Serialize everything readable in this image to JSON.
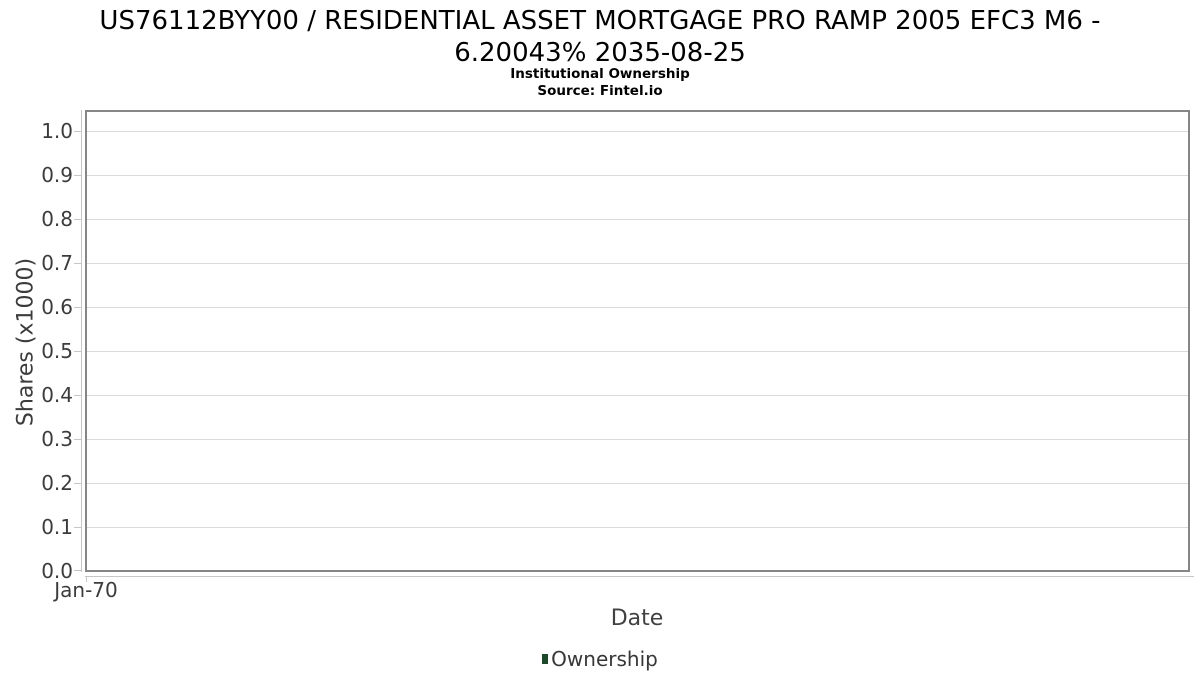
{
  "page": {
    "title_line1": "US76112BYY00 / RESIDENTIAL ASSET MORTGAGE PRO RAMP 2005 EFC3 M6 -",
    "title_line2": "6.20043% 2035-08-25",
    "subtitle": "Institutional Ownership",
    "source": "Source: Fintel.io"
  },
  "chart_data": {
    "type": "line",
    "title": "US76112BYY00 / RESIDENTIAL ASSET MORTGAGE PRO RAMP 2005 EFC3 M6 - 6.20043% 2035-08-25",
    "subtitle": "Institutional Ownership",
    "source": "Source: Fintel.io",
    "xlabel": "Date",
    "ylabel": "Shares (x1000)",
    "x_tick_labels": [
      "Jan-70"
    ],
    "y_tick_labels": [
      "0.0",
      "0.1",
      "0.2",
      "0.3",
      "0.4",
      "0.5",
      "0.6",
      "0.7",
      "0.8",
      "0.9",
      "1.0"
    ],
    "ylim": [
      0.0,
      1.04
    ],
    "grid": true,
    "legend_position": "bottom",
    "series": [
      {
        "name": "Ownership",
        "color": "#1e4a2b",
        "x": [],
        "values": []
      }
    ]
  },
  "colors": {
    "plot_border": "#868686",
    "gridline": "#dadada",
    "axis_line": "#c6c6c6",
    "tick_text": "#3c3c3c",
    "title_text": "#000000",
    "legend_marker": "#1e4a2b"
  }
}
